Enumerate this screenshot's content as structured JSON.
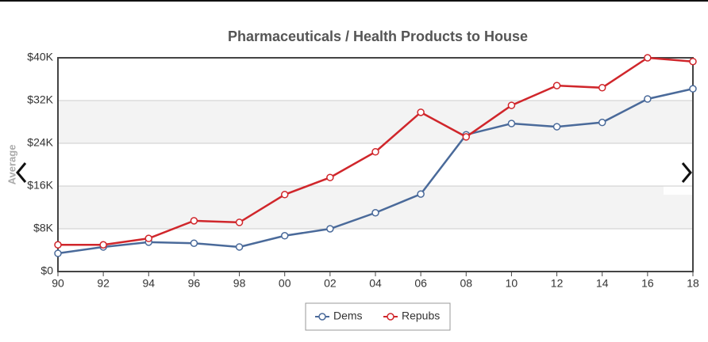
{
  "chart_data": {
    "type": "line",
    "title": "Pharmaceuticals / Health Products to House",
    "y_label": "Average",
    "categories": [
      "90",
      "92",
      "94",
      "96",
      "98",
      "00",
      "02",
      "04",
      "06",
      "08",
      "10",
      "12",
      "14",
      "16",
      "18"
    ],
    "series": [
      {
        "name": "Dems",
        "color": "#4a6a9a",
        "values": [
          3400,
          4600,
          5500,
          5300,
          4600,
          6700,
          8000,
          11000,
          14500,
          25600,
          27700,
          27100,
          27900,
          32300,
          34200
        ]
      },
      {
        "name": "Repubs",
        "color": "#d0262b",
        "values": [
          5000,
          5000,
          6200,
          9500,
          9200,
          14400,
          17600,
          22400,
          29800,
          25200,
          31100,
          34800,
          34400,
          40000,
          39300
        ]
      }
    ],
    "ylim": [
      0,
      40000
    ],
    "yticks": [
      {
        "value": 0,
        "label": "$0"
      },
      {
        "value": 8000,
        "label": "$8K"
      },
      {
        "value": 16000,
        "label": "$16K"
      },
      {
        "value": 24000,
        "label": "$24K"
      },
      {
        "value": 32000,
        "label": "$32K"
      },
      {
        "value": 40000,
        "label": "$40K"
      }
    ],
    "grid": true,
    "legend": "bottom"
  }
}
